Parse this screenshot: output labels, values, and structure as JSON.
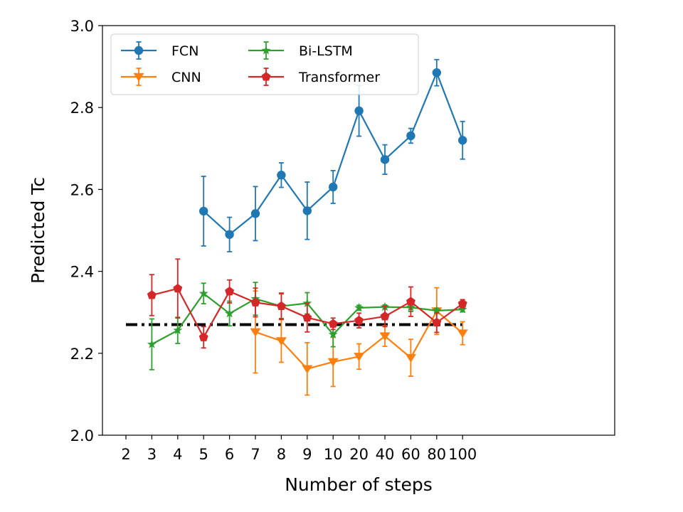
{
  "chart_data": {
    "type": "line",
    "xlabel": "Number of steps",
    "ylabel": "Predicted Tc",
    "ylim": [
      2.0,
      3.0
    ],
    "yticks": [
      "2.0",
      "2.2",
      "2.4",
      "2.6",
      "2.8",
      "3.0"
    ],
    "x_categories": [
      "2",
      "3",
      "4",
      "5",
      "6",
      "7",
      "8",
      "9",
      "10",
      "20",
      "40",
      "60",
      "80",
      "100"
    ],
    "x_scale": "categorical (ticks evenly spaced)",
    "grid": false,
    "legend_placement": "top-left",
    "legend_columns": 2,
    "series": [
      {
        "name": "FCN",
        "color": "#1f77b4",
        "marker": "circle",
        "x": [
          "5",
          "6",
          "7",
          "8",
          "9",
          "10",
          "20",
          "40",
          "60",
          "80",
          "100"
        ],
        "values": [
          2.547,
          2.49,
          2.541,
          2.635,
          2.548,
          2.606,
          2.792,
          2.673,
          2.731,
          2.885,
          2.72
        ],
        "errors": [
          0.085,
          0.042,
          0.066,
          0.03,
          0.07,
          0.04,
          0.062,
          0.036,
          0.018,
          0.032,
          0.046
        ]
      },
      {
        "name": "CNN",
        "color": "#ff7f0e",
        "marker": "triangle-down",
        "x": [
          "7",
          "8",
          "9",
          "10",
          "20",
          "40",
          "60",
          "80",
          "100"
        ],
        "values": [
          2.252,
          2.23,
          2.162,
          2.179,
          2.192,
          2.242,
          2.189,
          2.303,
          2.249
        ],
        "errors": [
          0.1,
          0.052,
          0.064,
          0.06,
          0.031,
          0.025,
          0.045,
          0.057,
          0.028
        ]
      },
      {
        "name": "Bi-LSTM",
        "color": "#2ca02c",
        "marker": "star",
        "x": [
          "3",
          "4",
          "5",
          "6",
          "7",
          "8",
          "9",
          "10",
          "20",
          "40",
          "60",
          "80",
          "100"
        ],
        "values": [
          2.222,
          2.256,
          2.346,
          2.297,
          2.333,
          2.315,
          2.322,
          2.246,
          2.311,
          2.313,
          2.312,
          2.304,
          2.307
        ],
        "errors": [
          0.062,
          0.032,
          0.025,
          0.03,
          0.04,
          0.03,
          0.026,
          0.03,
          0.006,
          0.005,
          0.01,
          0.006,
          0.006
        ]
      },
      {
        "name": "Transformer",
        "color": "#d62728",
        "marker": "pentagon",
        "x": [
          "3",
          "4",
          "5",
          "6",
          "7",
          "8",
          "9",
          "10",
          "20",
          "40",
          "60",
          "80",
          "100"
        ],
        "values": [
          2.342,
          2.358,
          2.239,
          2.351,
          2.324,
          2.315,
          2.287,
          2.272,
          2.28,
          2.29,
          2.326,
          2.275,
          2.321
        ],
        "errors": [
          0.05,
          0.072,
          0.026,
          0.028,
          0.035,
          0.032,
          0.035,
          0.014,
          0.018,
          0.025,
          0.036,
          0.024,
          0.01
        ]
      }
    ],
    "reference_line": {
      "y": 2.27,
      "style": "dash-dot",
      "color": "#000000",
      "x_from": "2",
      "x_to": "100"
    }
  }
}
